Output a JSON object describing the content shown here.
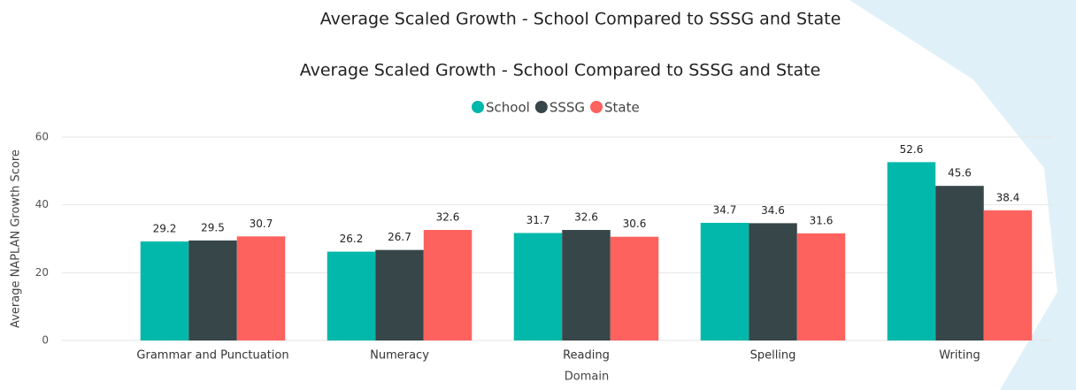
{
  "chart_data": {
    "type": "bar",
    "title": "Average Scaled Growth - School Compared to SSSG and State",
    "x_label": "Domain",
    "y_label": "Average NAPLAN Growth Score",
    "categories": [
      "Grammar and Punctuation",
      "Numeracy",
      "Reading",
      "Spelling",
      "Writing"
    ],
    "series": [
      {
        "name": "School",
        "color": "#01b8aa",
        "values": [
          29.2,
          26.2,
          31.7,
          34.7,
          52.6
        ]
      },
      {
        "name": "SSSG",
        "color": "#374649",
        "values": [
          29.5,
          26.7,
          32.6,
          34.6,
          45.6
        ]
      },
      {
        "name": "State",
        "color": "#fd625e",
        "values": [
          30.7,
          32.6,
          30.6,
          31.6,
          38.4
        ]
      }
    ],
    "ylim": [
      0,
      60
    ],
    "yticks": [
      0,
      20,
      40,
      60
    ],
    "grid": true,
    "legend": "top"
  }
}
